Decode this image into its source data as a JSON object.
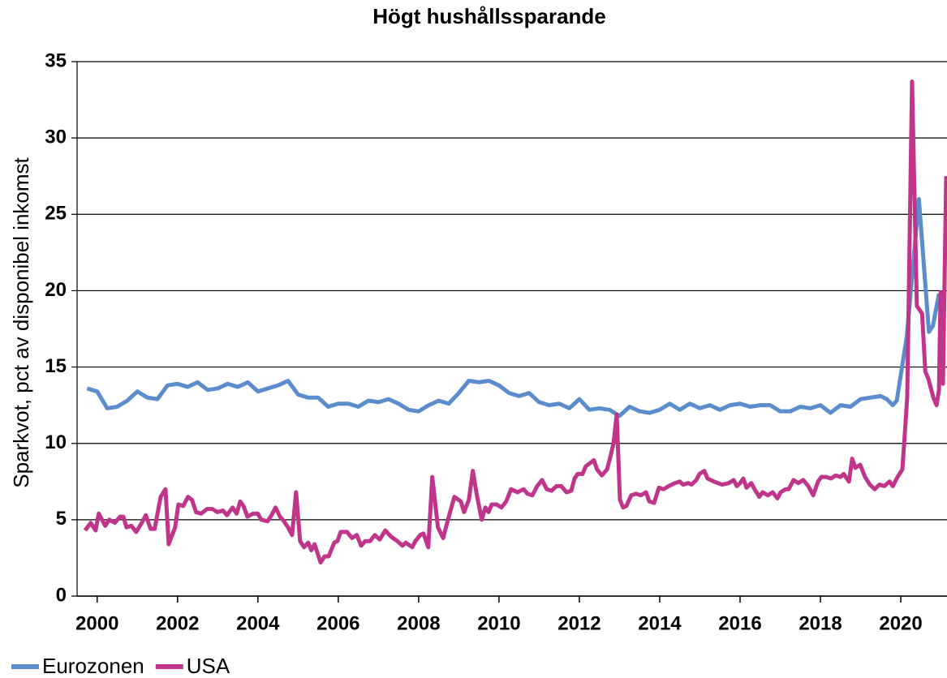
{
  "chart_data": {
    "type": "line",
    "title": "Högt hushållssparande",
    "ylabel": "Sparkvot, pct av disponibel inkomst",
    "xlim": [
      1999.5,
      2021.15
    ],
    "xticks": [
      2000,
      2002,
      2004,
      2006,
      2008,
      2010,
      2012,
      2014,
      2016,
      2018,
      2020
    ],
    "ylim": [
      0,
      35
    ],
    "yticks": [
      0,
      5,
      10,
      15,
      20,
      25,
      30,
      35
    ],
    "grid": true,
    "legend": "bottom-left",
    "series": [
      {
        "name": "Eurozonen",
        "color": "#5b8ccc",
        "x": [
          1999.75,
          2000,
          2000.25,
          2000.5,
          2000.75,
          2001,
          2001.25,
          2001.5,
          2001.75,
          2002,
          2002.25,
          2002.5,
          2002.75,
          2003,
          2003.25,
          2003.5,
          2003.75,
          2004,
          2004.25,
          2004.5,
          2004.75,
          2005,
          2005.25,
          2005.5,
          2005.75,
          2006,
          2006.25,
          2006.5,
          2006.75,
          2007,
          2007.25,
          2007.5,
          2007.75,
          2008,
          2008.25,
          2008.5,
          2008.75,
          2009,
          2009.25,
          2009.5,
          2009.75,
          2010,
          2010.25,
          2010.5,
          2010.75,
          2011,
          2011.25,
          2011.5,
          2011.75,
          2012,
          2012.25,
          2012.5,
          2012.75,
          2013,
          2013.25,
          2013.5,
          2013.75,
          2014,
          2014.25,
          2014.5,
          2014.75,
          2015,
          2015.25,
          2015.5,
          2015.75,
          2016,
          2016.25,
          2016.5,
          2016.75,
          2017,
          2017.25,
          2017.5,
          2017.75,
          2018,
          2018.25,
          2018.5,
          2018.75,
          2019,
          2019.25,
          2019.5,
          2019.65,
          2019.8,
          2019.9,
          2020.15,
          2020.45,
          2020.7,
          2020.8,
          2020.95
        ],
        "values": [
          13.6,
          13.4,
          12.3,
          12.4,
          12.8,
          13.4,
          13.0,
          12.9,
          13.8,
          13.9,
          13.7,
          14.0,
          13.5,
          13.6,
          13.9,
          13.7,
          14.0,
          13.4,
          13.6,
          13.8,
          14.1,
          13.2,
          13.0,
          13.0,
          12.4,
          12.6,
          12.6,
          12.4,
          12.8,
          12.7,
          12.9,
          12.6,
          12.2,
          12.1,
          12.5,
          12.8,
          12.6,
          13.3,
          14.1,
          14.0,
          14.1,
          13.8,
          13.3,
          13.1,
          13.3,
          12.7,
          12.5,
          12.6,
          12.3,
          12.9,
          12.2,
          12.3,
          12.2,
          11.8,
          12.4,
          12.1,
          12.0,
          12.2,
          12.6,
          12.2,
          12.6,
          12.3,
          12.5,
          12.2,
          12.5,
          12.6,
          12.4,
          12.5,
          12.5,
          12.1,
          12.1,
          12.4,
          12.3,
          12.5,
          12.0,
          12.5,
          12.4,
          12.9,
          13.0,
          13.1,
          12.9,
          12.5,
          12.8,
          17.0,
          26.0,
          17.3,
          17.7,
          19.8
        ]
      },
      {
        "name": "USA",
        "color": "#c0358a",
        "x": [
          1999.7,
          1999.84,
          1999.96,
          2000.04,
          2000.2,
          2000.3,
          2000.44,
          2000.57,
          2000.65,
          2000.73,
          2000.85,
          2000.97,
          2001.11,
          2001.21,
          2001.33,
          2001.43,
          2001.58,
          2001.7,
          2001.78,
          2001.94,
          2002.02,
          2002.14,
          2002.26,
          2002.36,
          2002.46,
          2002.59,
          2002.73,
          2002.87,
          2002.99,
          2003.13,
          2003.23,
          2003.37,
          2003.47,
          2003.56,
          2003.64,
          2003.74,
          2003.88,
          2004.0,
          2004.08,
          2004.24,
          2004.34,
          2004.44,
          2004.55,
          2004.65,
          2004.75,
          2004.85,
          2004.95,
          2005.05,
          2005.15,
          2005.25,
          2005.33,
          2005.41,
          2005.56,
          2005.66,
          2005.76,
          2005.9,
          2005.98,
          2006.06,
          2006.22,
          2006.34,
          2006.46,
          2006.57,
          2006.67,
          2006.79,
          2006.91,
          2007.03,
          2007.17,
          2007.31,
          2007.47,
          2007.6,
          2007.68,
          2007.84,
          2007.92,
          2008.04,
          2008.12,
          2008.24,
          2008.34,
          2008.48,
          2008.61,
          2008.73,
          2008.89,
          2009.05,
          2009.13,
          2009.25,
          2009.35,
          2009.45,
          2009.57,
          2009.66,
          2009.74,
          2009.82,
          2009.94,
          2010.06,
          2010.18,
          2010.3,
          2010.46,
          2010.61,
          2010.71,
          2010.83,
          2010.95,
          2011.07,
          2011.19,
          2011.31,
          2011.43,
          2011.55,
          2011.68,
          2011.8,
          2011.88,
          2011.96,
          2012.08,
          2012.16,
          2012.36,
          2012.44,
          2012.56,
          2012.69,
          2012.77,
          2012.85,
          2012.93,
          2013.01,
          2013.09,
          2013.17,
          2013.29,
          2013.41,
          2013.53,
          2013.66,
          2013.74,
          2013.86,
          2013.98,
          2014.1,
          2014.22,
          2014.38,
          2014.5,
          2014.58,
          2014.71,
          2014.79,
          2014.91,
          2014.99,
          2015.11,
          2015.19,
          2015.35,
          2015.55,
          2015.72,
          2015.84,
          2015.92,
          2016.0,
          2016.08,
          2016.16,
          2016.28,
          2016.36,
          2016.48,
          2016.56,
          2016.69,
          2016.81,
          2016.93,
          2017.01,
          2017.13,
          2017.21,
          2017.33,
          2017.45,
          2017.57,
          2017.7,
          2017.82,
          2017.94,
          2018.02,
          2018.14,
          2018.26,
          2018.38,
          2018.5,
          2018.58,
          2018.71,
          2018.79,
          2018.87,
          2018.99,
          2019.11,
          2019.23,
          2019.35,
          2019.47,
          2019.59,
          2019.72,
          2019.8,
          2019.92,
          2020.04,
          2020.16,
          2020.28,
          2020.4,
          2020.53,
          2020.61,
          2020.69,
          2020.81,
          2020.89,
          2020.95,
          2020.99,
          2021.05,
          2021.13
        ],
        "values": [
          4.3,
          4.8,
          4.3,
          5.4,
          4.6,
          5.0,
          4.8,
          5.2,
          5.2,
          4.5,
          4.6,
          4.2,
          4.8,
          5.3,
          4.4,
          4.4,
          6.5,
          7.0,
          3.4,
          4.5,
          6.0,
          5.9,
          6.5,
          6.3,
          5.5,
          5.4,
          5.7,
          5.7,
          5.5,
          5.6,
          5.3,
          5.8,
          5.4,
          6.2,
          5.9,
          5.2,
          5.4,
          5.4,
          5.0,
          4.9,
          5.3,
          5.8,
          5.2,
          4.9,
          4.5,
          4.0,
          6.8,
          3.6,
          3.2,
          3.5,
          3.0,
          3.4,
          2.2,
          2.6,
          2.6,
          3.5,
          3.6,
          4.2,
          4.2,
          3.8,
          4.0,
          3.3,
          3.6,
          3.6,
          4.0,
          3.7,
          4.3,
          3.9,
          3.6,
          3.3,
          3.5,
          3.2,
          3.6,
          4.0,
          4.1,
          3.2,
          7.8,
          4.5,
          3.8,
          5.0,
          6.5,
          6.2,
          5.5,
          6.3,
          8.2,
          6.6,
          5.0,
          5.8,
          5.5,
          6.0,
          6.0,
          5.8,
          6.2,
          7.0,
          6.8,
          7.0,
          6.7,
          6.6,
          7.2,
          7.6,
          7.0,
          6.9,
          7.2,
          7.2,
          6.8,
          6.9,
          7.7,
          8.0,
          8.0,
          8.5,
          8.9,
          8.3,
          7.9,
          8.3,
          9.1,
          10.0,
          11.9,
          6.3,
          5.8,
          5.9,
          6.6,
          6.7,
          6.6,
          6.8,
          6.2,
          6.1,
          7.1,
          7.0,
          7.2,
          7.4,
          7.5,
          7.3,
          7.4,
          7.3,
          7.6,
          8.0,
          8.2,
          7.7,
          7.5,
          7.3,
          7.4,
          7.6,
          7.2,
          7.4,
          7.7,
          7.1,
          7.4,
          7.0,
          6.5,
          6.8,
          6.6,
          6.8,
          6.4,
          6.8,
          7.0,
          7.0,
          7.6,
          7.4,
          7.6,
          7.2,
          6.6,
          7.5,
          7.8,
          7.8,
          7.7,
          7.9,
          7.8,
          8.0,
          7.5,
          9.0,
          8.4,
          8.6,
          7.8,
          7.3,
          7.0,
          7.3,
          7.2,
          7.5,
          7.2,
          7.8,
          8.3,
          13.0,
          33.7,
          19.0,
          18.5,
          14.7,
          14.2,
          13.0,
          12.5,
          13.5,
          19.9,
          13.9,
          27.5
        ]
      }
    ]
  }
}
